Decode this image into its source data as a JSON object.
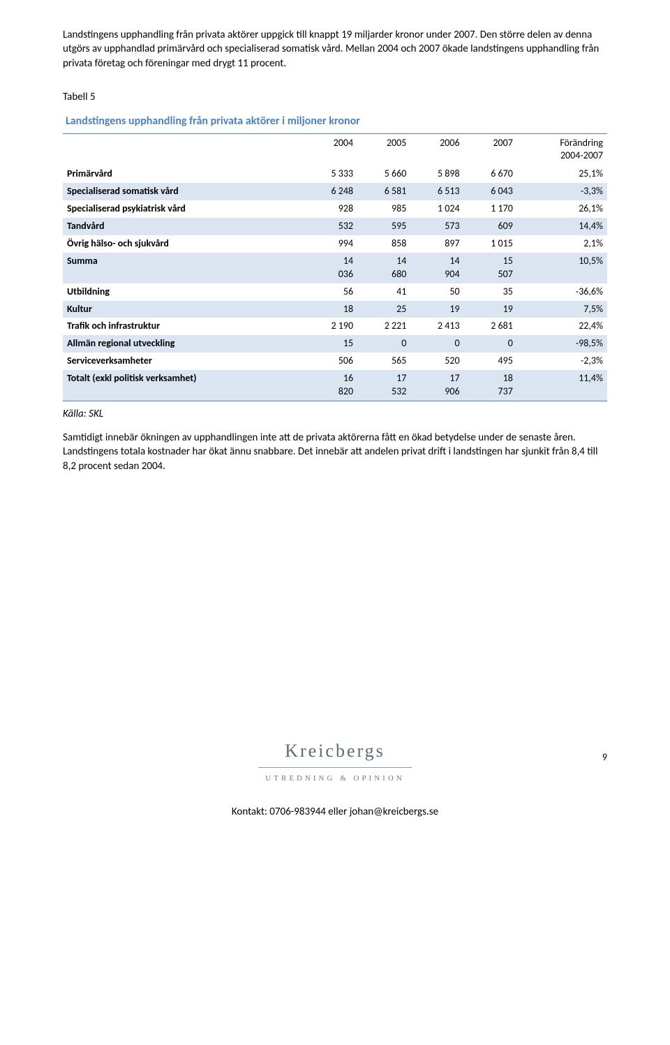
{
  "paragraphs": {
    "p1": "Landstingens upphandling från privata aktörer uppgick till knappt 19 miljarder kronor under 2007. Den större delen av denna utgörs av upphandlad primärvård och specialiserad somatisk vård. Mellan 2004 och 2007 ökade landstingens upphandling från privata företag och föreningar med drygt 11 procent.",
    "p2": "Samtidigt innebär ökningen av upphandlingen inte att de privata aktörerna fått en ökad betydelse under de senaste åren. Landstingens totala kostnader har ökat ännu snabbare. Det innebär att andelen privat drift i landstingen har sjunkit från 8,4 till 8,2 procent sedan 2004."
  },
  "table": {
    "label": "Tabell 5",
    "title": "Landstingens upphandling från privata aktörer i miljoner kronor",
    "headers": {
      "c2004": "2004",
      "c2005": "2005",
      "c2006": "2006",
      "c2007": "2007",
      "change": "Förändring\n2004-2007"
    },
    "shade_color": "#dbe5f1",
    "accent_color": "#4f81bd",
    "rows": [
      {
        "label": "Primärvård",
        "v": [
          "5 333",
          "5 660",
          "5 898",
          "6 670",
          "25,1%"
        ],
        "shade": false,
        "multi": false
      },
      {
        "label": "Specialiserad somatisk vård",
        "v": [
          "6 248",
          "6 581",
          "6 513",
          "6 043",
          "-3,3%"
        ],
        "shade": true,
        "multi": false
      },
      {
        "label": "Specialiserad psykiatrisk vård",
        "v": [
          "928",
          "985",
          "1 024",
          "1 170",
          "26,1%"
        ],
        "shade": false,
        "multi": false
      },
      {
        "label": "Tandvård",
        "v": [
          "532",
          "595",
          "573",
          "609",
          "14,4%"
        ],
        "shade": true,
        "multi": false
      },
      {
        "label": "Övrig hälso- och sjukvård",
        "v": [
          "994",
          "858",
          "897",
          "1 015",
          "2,1%"
        ],
        "shade": false,
        "multi": false
      },
      {
        "label": "Summa",
        "v": [
          "14\n036",
          "14\n680",
          "14\n904",
          "15\n507",
          "10,5%"
        ],
        "shade": true,
        "multi": true
      },
      {
        "label": "Utbildning",
        "v": [
          "56",
          "41",
          "50",
          "35",
          "-36,6%"
        ],
        "shade": false,
        "multi": false
      },
      {
        "label": "Kultur",
        "v": [
          "18",
          "25",
          "19",
          "19",
          "7,5%"
        ],
        "shade": true,
        "multi": false
      },
      {
        "label": "Trafik och infrastruktur",
        "v": [
          "2 190",
          "2 221",
          "2 413",
          "2 681",
          "22,4%"
        ],
        "shade": false,
        "multi": false
      },
      {
        "label": "Allmän regional utveckling",
        "v": [
          "15",
          "0",
          "0",
          "0",
          "-98,5%"
        ],
        "shade": true,
        "multi": false
      },
      {
        "label": "Serviceverksamheter",
        "v": [
          "506",
          "565",
          "520",
          "495",
          "-2,3%"
        ],
        "shade": false,
        "multi": false
      },
      {
        "label": "Totalt (exkl politisk verksamhet)",
        "v": [
          "16\n820",
          "17\n532",
          "17\n906",
          "18\n737",
          "11,4%"
        ],
        "shade": true,
        "multi": true
      }
    ],
    "source": "Källa: SKL"
  },
  "footer": {
    "page": "9",
    "logo_name": "Kreicbergs",
    "logo_sub": "UTREDNING & OPINION",
    "contact": "Kontakt: 0706-983944 eller johan@kreicbergs.se"
  }
}
